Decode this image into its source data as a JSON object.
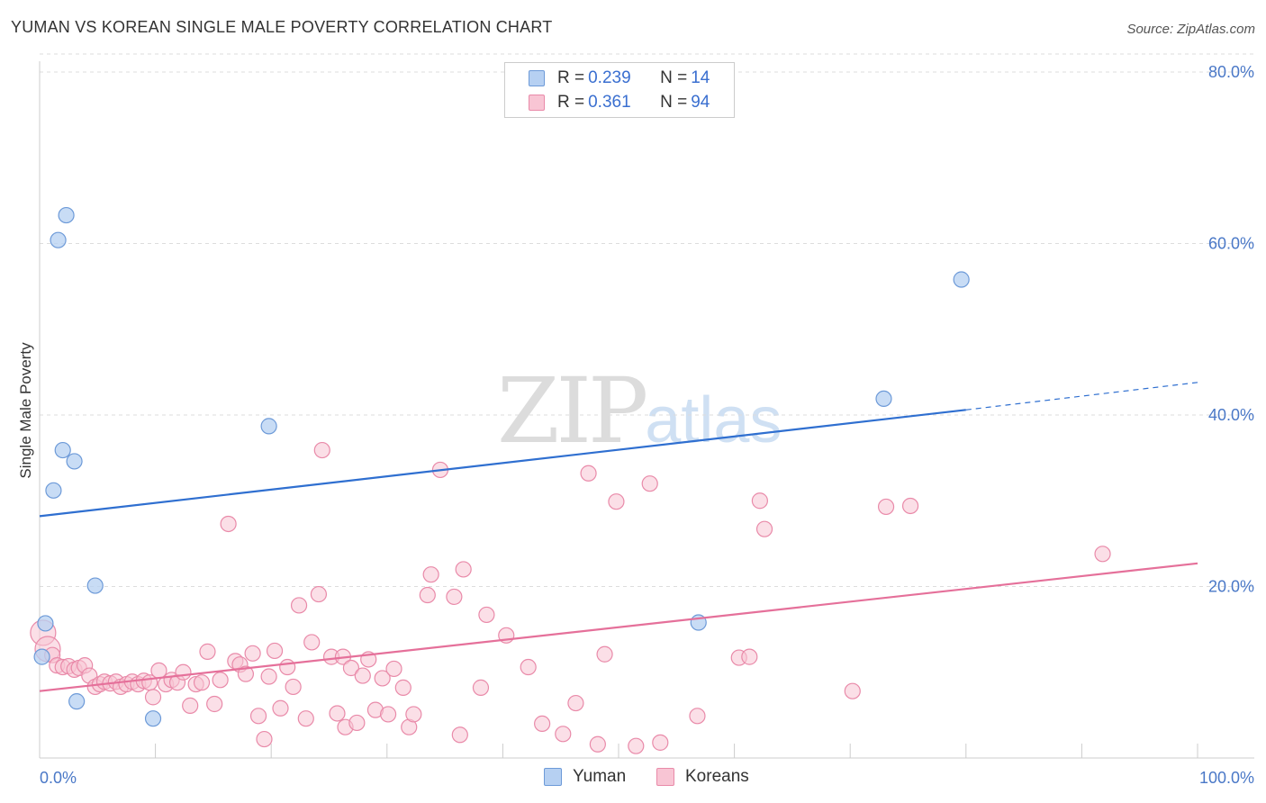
{
  "header": {
    "title": "YUMAN VS KOREAN SINGLE MALE POVERTY CORRELATION CHART",
    "source": "Source: ZipAtlas.com"
  },
  "watermark": {
    "zip": "ZIP",
    "atlas": "atlas"
  },
  "legend": {
    "rows": [
      {
        "r_label": "R = ",
        "r_value": "0.239",
        "n_label": "N = ",
        "n_value": "14"
      },
      {
        "r_label": "R = ",
        "r_value": "0.361",
        "n_label": "N = ",
        "n_value": "94"
      }
    ]
  },
  "bottom_legend": {
    "yuman": "Yuman",
    "koreans": "Koreans"
  },
  "colors": {
    "yuman_fill": "#b6d0f2",
    "yuman_stroke": "#6d9ad8",
    "yuman_line": "#2f6fd0",
    "korean_fill": "#f8c5d4",
    "korean_stroke": "#e98aa9",
    "korean_line": "#e5709a",
    "grid": "#dddddd",
    "tick_label": "#4a78c7"
  },
  "chart_data": {
    "type": "scatter",
    "title": "YUMAN VS KOREAN SINGLE MALE POVERTY CORRELATION CHART",
    "xlabel": "",
    "ylabel": "Single Male Poverty",
    "xlim": [
      0,
      100
    ],
    "ylim": [
      0,
      80
    ],
    "x_tick_labels": [
      "0.0%",
      "100.0%"
    ],
    "y_ticks": [
      20,
      40,
      60,
      80
    ],
    "y_tick_labels": [
      "20.0%",
      "40.0%",
      "60.0%",
      "80.0%"
    ],
    "grid": true,
    "series": [
      {
        "name": "Yuman",
        "r": 0.239,
        "n": 14,
        "trend": {
          "x0": 0,
          "y0": 28.2,
          "x1": 80,
          "y1": 40.6,
          "dash_to_x": 100,
          "dash_to_y": 43.8
        },
        "points": [
          [
            0.2,
            11.8
          ],
          [
            0.5,
            15.7
          ],
          [
            1.2,
            31.2
          ],
          [
            1.6,
            60.4
          ],
          [
            2.0,
            35.9
          ],
          [
            2.3,
            63.3
          ],
          [
            3.0,
            34.6
          ],
          [
            3.2,
            6.6
          ],
          [
            4.8,
            20.1
          ],
          [
            9.8,
            4.6
          ],
          [
            19.8,
            38.7
          ],
          [
            56.9,
            15.8
          ],
          [
            72.9,
            41.9
          ],
          [
            79.6,
            55.8
          ]
        ]
      },
      {
        "name": "Koreans",
        "r": 0.361,
        "n": 94,
        "trend": {
          "x0": 0,
          "y0": 7.8,
          "x1": 100,
          "y1": 22.7
        },
        "points": [
          [
            0.3,
            14.6
          ],
          [
            0.7,
            12.7
          ],
          [
            1.1,
            12.0
          ],
          [
            1.5,
            10.8
          ],
          [
            2.0,
            10.6
          ],
          [
            2.5,
            10.7
          ],
          [
            3.0,
            10.3
          ],
          [
            3.4,
            10.5
          ],
          [
            3.9,
            10.8
          ],
          [
            4.3,
            9.6
          ],
          [
            4.8,
            8.3
          ],
          [
            5.2,
            8.6
          ],
          [
            5.6,
            8.9
          ],
          [
            6.1,
            8.7
          ],
          [
            6.6,
            8.9
          ],
          [
            7.0,
            8.3
          ],
          [
            7.5,
            8.6
          ],
          [
            8.0,
            8.9
          ],
          [
            8.5,
            8.6
          ],
          [
            9.0,
            9.0
          ],
          [
            9.5,
            8.8
          ],
          [
            9.8,
            7.1
          ],
          [
            10.3,
            10.2
          ],
          [
            10.9,
            8.6
          ],
          [
            11.4,
            9.1
          ],
          [
            11.9,
            8.8
          ],
          [
            12.4,
            10.0
          ],
          [
            13.0,
            6.1
          ],
          [
            13.5,
            8.6
          ],
          [
            14.0,
            8.8
          ],
          [
            14.5,
            12.4
          ],
          [
            15.1,
            6.3
          ],
          [
            15.6,
            9.1
          ],
          [
            16.3,
            27.3
          ],
          [
            16.9,
            11.3
          ],
          [
            17.3,
            10.9
          ],
          [
            17.8,
            9.8
          ],
          [
            18.4,
            12.2
          ],
          [
            18.9,
            4.9
          ],
          [
            19.4,
            2.2
          ],
          [
            19.8,
            9.5
          ],
          [
            20.3,
            12.5
          ],
          [
            20.8,
            5.8
          ],
          [
            21.4,
            10.6
          ],
          [
            21.9,
            8.3
          ],
          [
            22.4,
            17.8
          ],
          [
            23.0,
            4.6
          ],
          [
            23.5,
            13.5
          ],
          [
            24.1,
            19.1
          ],
          [
            24.4,
            35.9
          ],
          [
            25.2,
            11.8
          ],
          [
            25.7,
            5.2
          ],
          [
            26.2,
            11.8
          ],
          [
            26.4,
            3.6
          ],
          [
            26.9,
            10.5
          ],
          [
            27.4,
            4.1
          ],
          [
            27.9,
            9.6
          ],
          [
            28.4,
            11.5
          ],
          [
            29.0,
            5.6
          ],
          [
            29.6,
            9.3
          ],
          [
            30.1,
            5.1
          ],
          [
            30.6,
            10.4
          ],
          [
            31.4,
            8.2
          ],
          [
            31.9,
            3.6
          ],
          [
            32.3,
            5.1
          ],
          [
            33.5,
            19.0
          ],
          [
            33.8,
            21.4
          ],
          [
            34.6,
            33.6
          ],
          [
            35.8,
            18.8
          ],
          [
            36.3,
            2.7
          ],
          [
            36.6,
            22.0
          ],
          [
            38.1,
            8.2
          ],
          [
            38.6,
            16.7
          ],
          [
            40.3,
            14.3
          ],
          [
            42.2,
            10.6
          ],
          [
            43.4,
            4.0
          ],
          [
            45.2,
            2.8
          ],
          [
            46.3,
            6.4
          ],
          [
            47.4,
            33.2
          ],
          [
            48.2,
            1.6
          ],
          [
            48.8,
            12.1
          ],
          [
            49.8,
            29.9
          ],
          [
            51.5,
            1.4
          ],
          [
            52.7,
            32.0
          ],
          [
            53.6,
            1.8
          ],
          [
            56.8,
            4.9
          ],
          [
            60.4,
            11.7
          ],
          [
            61.3,
            11.8
          ],
          [
            62.2,
            30.0
          ],
          [
            62.6,
            26.7
          ],
          [
            70.2,
            7.8
          ],
          [
            73.1,
            29.3
          ],
          [
            75.2,
            29.4
          ],
          [
            91.8,
            23.8
          ]
        ]
      }
    ]
  }
}
